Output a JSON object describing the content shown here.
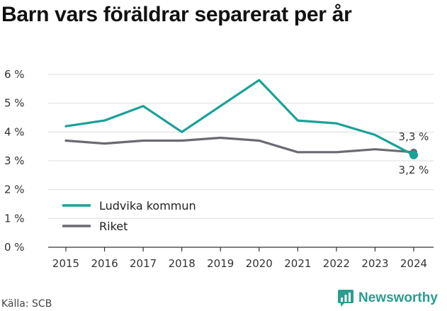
{
  "header": {
    "title": "Barn vars föräldrar separerat per år"
  },
  "footer": {
    "source": "Källa: SCB",
    "brand": "Newsworthy"
  },
  "colors": {
    "ludvika": "#1aa198",
    "riket": "#6b6a72",
    "grid": "#dedede",
    "axis": "#333333",
    "brand": "#2a9d8f"
  },
  "chart_data": {
    "type": "line",
    "title": "Barn vars föräldrar separerat per år",
    "xlabel": "",
    "ylabel": "",
    "x": [
      2015,
      2016,
      2017,
      2018,
      2019,
      2020,
      2021,
      2022,
      2023,
      2024
    ],
    "y_ticks": [
      "0 %",
      "1 %",
      "2 %",
      "3 %",
      "4 %",
      "5 %",
      "6 %"
    ],
    "ylim": [
      0,
      6
    ],
    "grid": true,
    "legend_position": "bottom-left",
    "series": [
      {
        "name": "Ludvika kommun",
        "color": "#1aa198",
        "values": [
          4.2,
          4.4,
          4.9,
          4.0,
          4.9,
          5.8,
          4.4,
          4.3,
          3.9,
          3.2
        ],
        "end_label": "3,2 %"
      },
      {
        "name": "Riket",
        "color": "#6b6a72",
        "values": [
          3.7,
          3.6,
          3.7,
          3.7,
          3.8,
          3.7,
          3.3,
          3.3,
          3.4,
          3.3
        ],
        "end_label": "3,3 %"
      }
    ]
  }
}
